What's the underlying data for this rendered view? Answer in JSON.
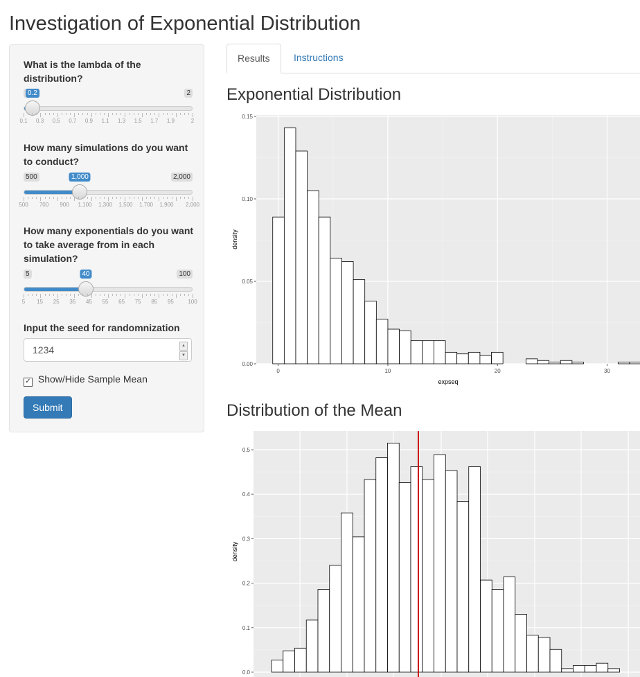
{
  "page": {
    "title": "Investigation of Exponential Distribution"
  },
  "sidebar": {
    "lambda": {
      "label": "What is the lambda of the distribution?",
      "min_label": "0.1",
      "max_label": "2",
      "value_label": "0.2",
      "min": 0.1,
      "max": 2,
      "value": 0.2,
      "tick_labels": [
        "0.1",
        "0.3",
        "0.5",
        "0.7",
        "0.9",
        "1.1",
        "1.3",
        "1.5",
        "1.7",
        "1.9",
        "2"
      ]
    },
    "simulations": {
      "label": "How many simulations do you want to conduct?",
      "min_label": "500",
      "max_label": "2,000",
      "value_label": "1,000",
      "min": 500,
      "max": 2000,
      "value": 1000,
      "tick_labels": [
        "500",
        "700",
        "900",
        "1,100",
        "1,300",
        "1,500",
        "1,700",
        "1,900",
        "2,000"
      ]
    },
    "exponentials": {
      "label": "How many exponentials do you want to take average from in each simulation?",
      "min_label": "5",
      "max_label": "100",
      "value_label": "40",
      "min": 5,
      "max": 100,
      "value": 40,
      "tick_labels": [
        "5",
        "15",
        "25",
        "35",
        "45",
        "55",
        "65",
        "75",
        "85",
        "95",
        "100"
      ]
    },
    "seed": {
      "label": "Input the seed for randomnization",
      "value": "1234"
    },
    "show_mean": {
      "label": "Show/Hide Sample Mean",
      "checked": true,
      "check_glyph": "✓"
    },
    "submit_label": "Submit"
  },
  "tabs": [
    {
      "label": "Results",
      "active": true
    },
    {
      "label": "Instructions",
      "active": false
    }
  ],
  "sections": {
    "exp_title": "Exponential Distribution",
    "mean_title": "Distribution of the Mean"
  },
  "chart_data": [
    {
      "type": "bar",
      "title": "Exponential Distribution",
      "xlabel": "expseq",
      "ylabel": "density",
      "xlim": [
        -2,
        33
      ],
      "ylim": [
        0,
        0.15
      ],
      "xticks": [
        "0",
        "10",
        "20",
        "30"
      ],
      "yticks": [
        "0.00",
        "0.05",
        "0.10",
        "0.15"
      ],
      "bin_width": 1.05,
      "bin_start": -0.5,
      "values": [
        0.089,
        0.143,
        0.129,
        0.105,
        0.089,
        0.064,
        0.062,
        0.051,
        0.038,
        0.027,
        0.021,
        0.02,
        0.014,
        0.014,
        0.014,
        0.007,
        0.006,
        0.007,
        0.005,
        0.007,
        0,
        0,
        0.003,
        0.002,
        0.001,
        0.002,
        0.001,
        0,
        0,
        0,
        0.001,
        0.001
      ]
    },
    {
      "type": "bar",
      "title": "Distribution of the Mean",
      "ylabel": "density",
      "ylim": [
        0,
        0.5
      ],
      "yticks": [
        "0.0",
        "0.1",
        "0.2",
        "0.3",
        "0.4",
        "0.5"
      ],
      "values": [
        0.027,
        0.048,
        0.054,
        0.117,
        0.186,
        0.24,
        0.358,
        0.304,
        0.433,
        0.482,
        0.515,
        0.426,
        0.462,
        0.433,
        0.489,
        0.453,
        0.384,
        0.462,
        0.207,
        0.186,
        0.214,
        0.13,
        0.083,
        0.078,
        0.051,
        0.008,
        0.015,
        0.015,
        0.02,
        0.008
      ],
      "mean_line_color": "#cc0000",
      "bar_fill": "#ffffff",
      "bar_stroke": "#000000",
      "panel_bg": "#ebebeb"
    }
  ]
}
